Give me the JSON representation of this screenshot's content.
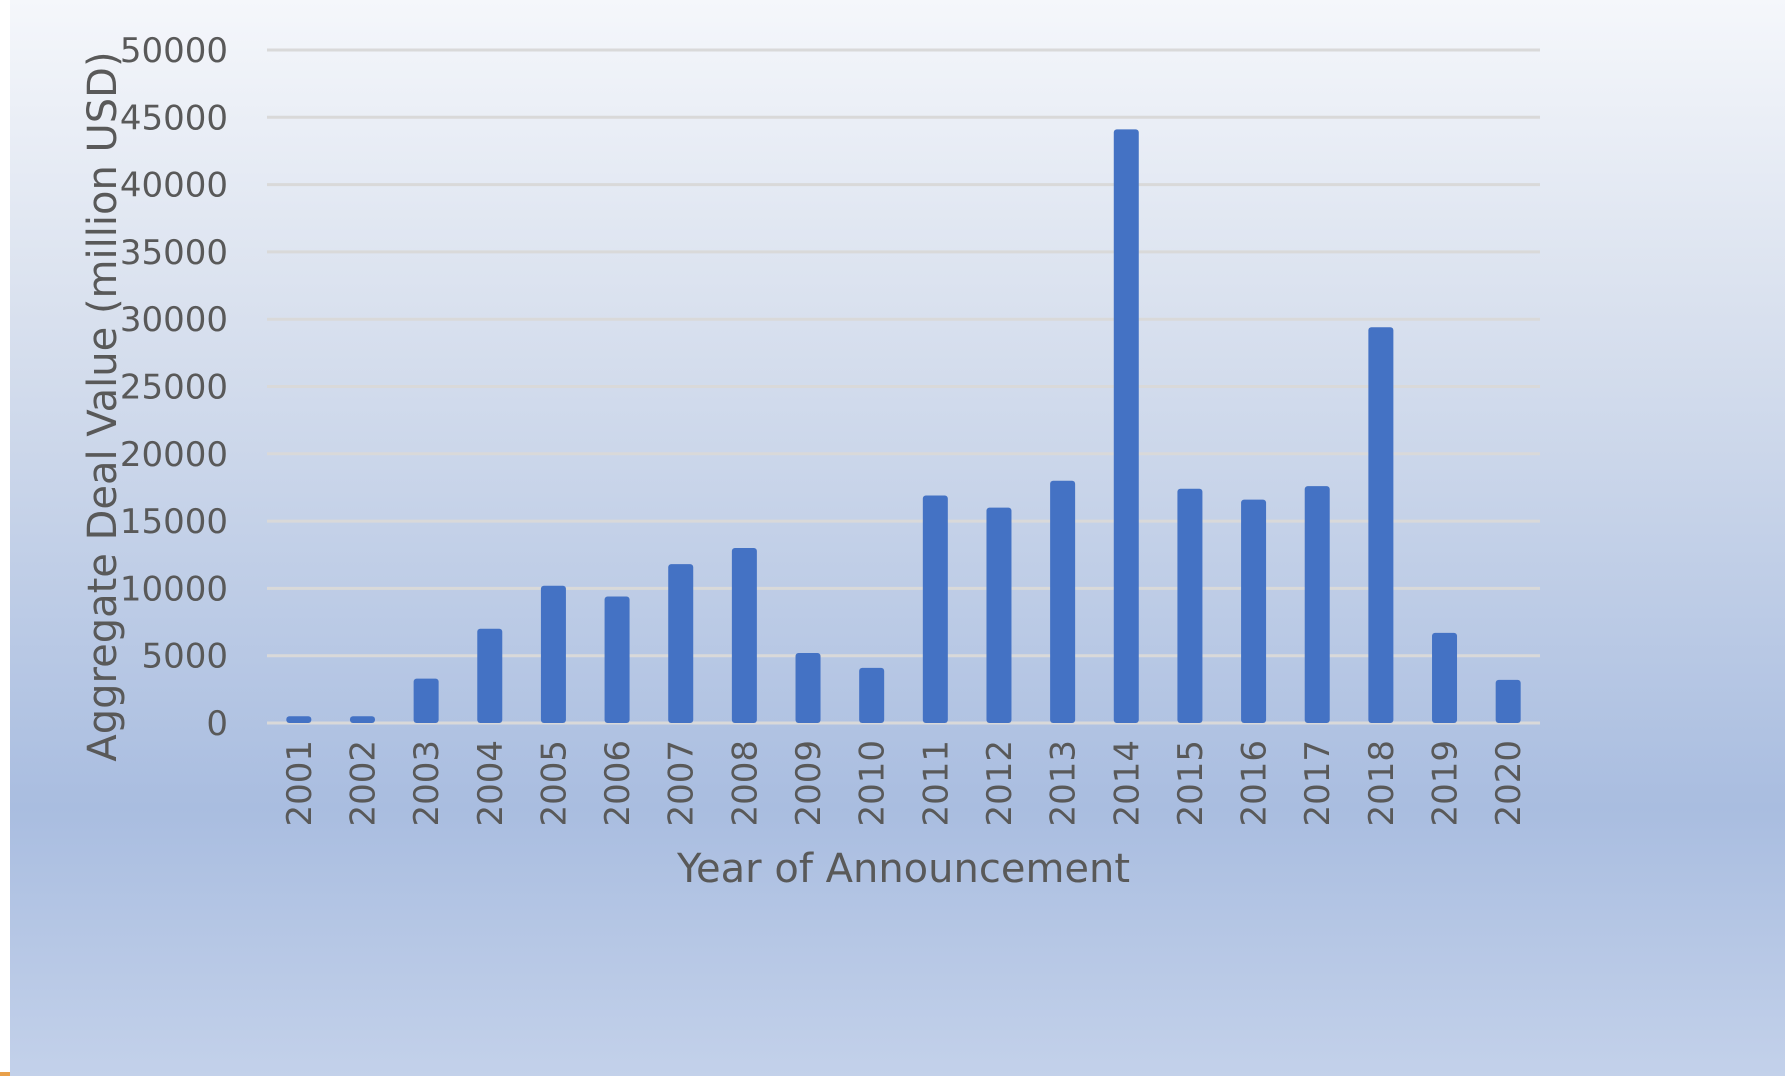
{
  "chart_data": {
    "type": "bar",
    "title": "",
    "xlabel": "Year of Announcement",
    "ylabel": "Aggregate Deal Value (million USD)",
    "ylim": [
      0,
      50000
    ],
    "yticks": [
      "0",
      "5000",
      "10000",
      "15000",
      "20000",
      "25000",
      "30000",
      "35000",
      "40000",
      "45000",
      "50000"
    ],
    "grid": "horizontal",
    "legend": "none",
    "bar_color": "#4472c4",
    "categories": [
      "2001",
      "2002",
      "2003",
      "2004",
      "2005",
      "2006",
      "2007",
      "2008",
      "2009",
      "2010",
      "2011",
      "2012",
      "2013",
      "2014",
      "2015",
      "2016",
      "2017",
      "2018",
      "2019",
      "2020"
    ],
    "values": [
      500,
      500,
      3300,
      7000,
      10200,
      9400,
      11800,
      13000,
      5200,
      4100,
      16900,
      16000,
      18000,
      44100,
      17400,
      16600,
      17600,
      29400,
      6700,
      3200
    ]
  }
}
